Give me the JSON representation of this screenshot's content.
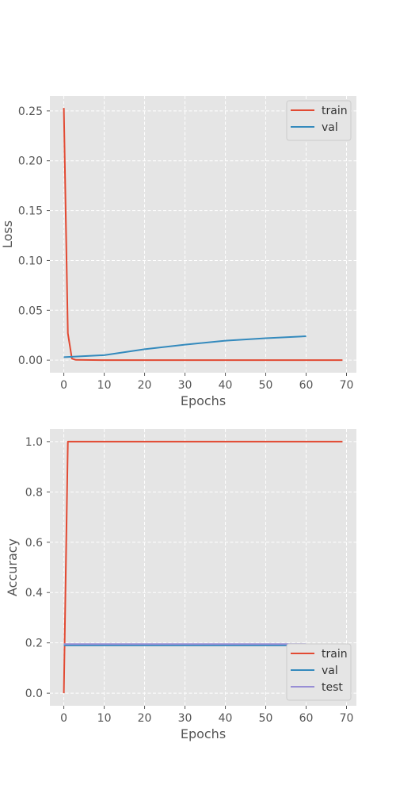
{
  "chart_data": [
    {
      "type": "line",
      "xlabel": "Epochs",
      "ylabel": "Loss",
      "xlim": [
        -3.45,
        72.45
      ],
      "ylim": [
        -0.0126,
        0.265
      ],
      "xticks": [
        0,
        10,
        20,
        30,
        40,
        50,
        60,
        70
      ],
      "xtick_labels": [
        "0",
        "10",
        "20",
        "30",
        "40",
        "50",
        "60",
        "70"
      ],
      "yticks": [
        0.0,
        0.05,
        0.1,
        0.15,
        0.2,
        0.25
      ],
      "ytick_labels": [
        "0.00",
        "0.05",
        "0.10",
        "0.15",
        "0.20",
        "0.25"
      ],
      "grid": true,
      "legend_position": "top-right",
      "series": [
        {
          "name": "train",
          "color": "#E24A33",
          "x": [
            0,
            1,
            2,
            3,
            10,
            20,
            30,
            40,
            50,
            60,
            69
          ],
          "y": [
            0.253,
            0.027,
            0.0015,
            0.0003,
            0.0,
            0.0,
            0.0,
            0.0,
            0.0,
            0.0,
            0.0
          ]
        },
        {
          "name": "val",
          "color": "#348ABD",
          "x": [
            0,
            10,
            20,
            30,
            40,
            50,
            60
          ],
          "y": [
            0.003,
            0.005,
            0.011,
            0.0155,
            0.0195,
            0.022,
            0.024
          ]
        }
      ]
    },
    {
      "type": "line",
      "xlabel": "Epochs",
      "ylabel": "Accuracy",
      "xlim": [
        -3.45,
        72.45
      ],
      "ylim": [
        -0.05,
        1.05
      ],
      "xticks": [
        0,
        10,
        20,
        30,
        40,
        50,
        60,
        70
      ],
      "xtick_labels": [
        "0",
        "10",
        "20",
        "30",
        "40",
        "50",
        "60",
        "70"
      ],
      "yticks": [
        0.0,
        0.2,
        0.4,
        0.6,
        0.8,
        1.0
      ],
      "ytick_labels": [
        "0.0",
        "0.2",
        "0.4",
        "0.6",
        "0.8",
        "1.0"
      ],
      "grid": true,
      "legend_position": "bottom-right",
      "series": [
        {
          "name": "train",
          "color": "#E24A33",
          "x": [
            0,
            1,
            10,
            20,
            30,
            40,
            50,
            60,
            69
          ],
          "y": [
            0.0,
            1.0,
            1.0,
            1.0,
            1.0,
            1.0,
            1.0,
            1.0,
            1.0
          ]
        },
        {
          "name": "val",
          "color": "#348ABD",
          "x": [
            0,
            60
          ],
          "y": [
            0.19,
            0.19
          ]
        },
        {
          "name": "test",
          "color": "#988ED5",
          "x": [
            0,
            60
          ],
          "y": [
            0.195,
            0.195
          ]
        }
      ]
    }
  ]
}
